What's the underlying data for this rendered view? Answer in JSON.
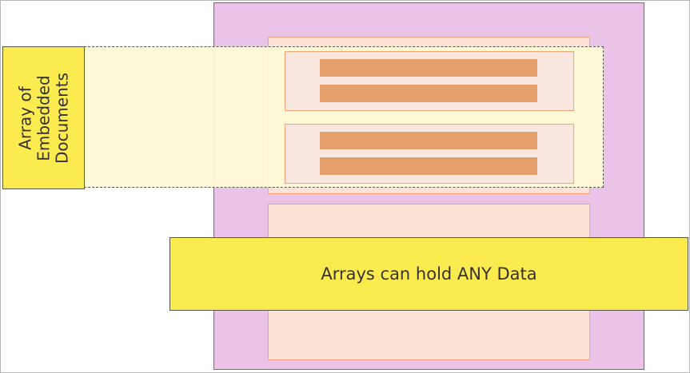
{
  "diagram": {
    "array_label": "Array of\nEmbedded\nDocuments",
    "callout": "Arrays can hold ANY Data"
  },
  "colors": {
    "document_fill": "#ecc3e8",
    "field_fill": "#fde3d6",
    "embedded_fill": "#f9e7e0",
    "bar_fill": "#e59f6c",
    "label_fill": "#fceb4e",
    "highlight_fill": "#fffbd6"
  }
}
